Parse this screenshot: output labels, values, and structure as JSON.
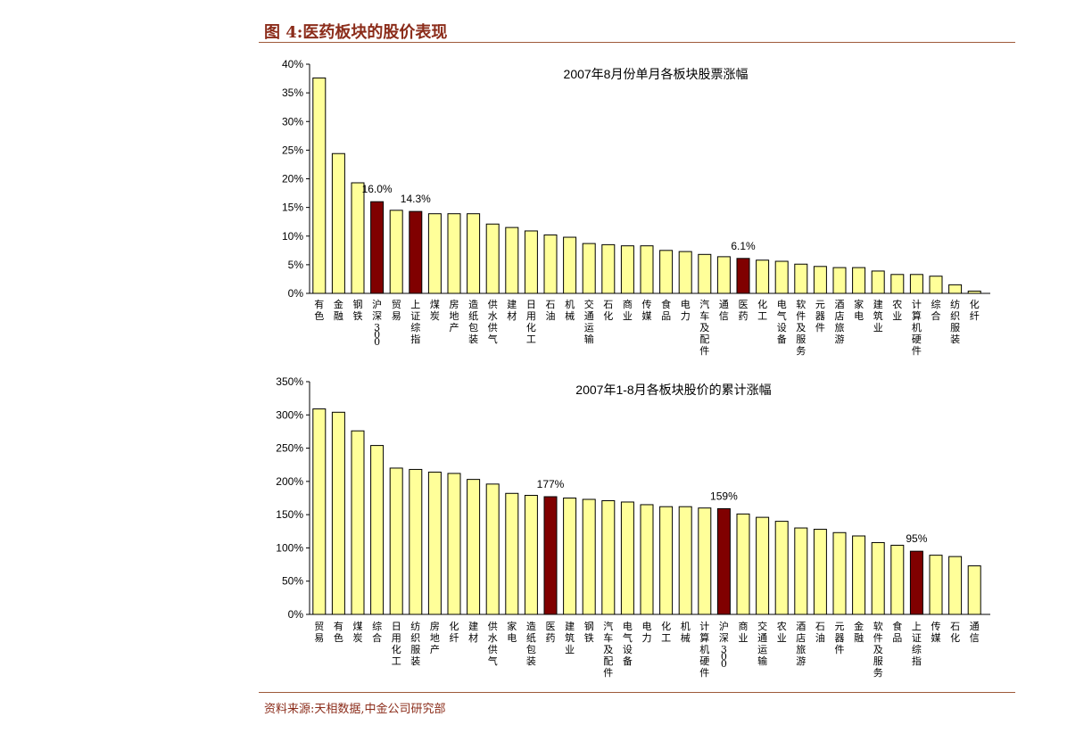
{
  "figure": {
    "title": "图 4:医药板块的股价表现",
    "source": "资料来源:天相数据,中金公司研究部"
  },
  "colors": {
    "normal_bar": "#FFFF99",
    "highlight_bar": "#800000",
    "bar_stroke": "#000000"
  },
  "chart_data": [
    {
      "type": "bar",
      "title": "2007年8月份单月各板块股票涨幅",
      "xlabel": "",
      "ylabel": "",
      "ylim": [
        0,
        40
      ],
      "yticks": [
        0,
        5,
        10,
        15,
        20,
        25,
        30,
        35,
        40
      ],
      "ytick_labels": [
        "0%",
        "5%",
        "10%",
        "15%",
        "20%",
        "25%",
        "30%",
        "35%",
        "40%"
      ],
      "grid": false,
      "legend": "none",
      "categories": [
        "有色",
        "金融",
        "钢铁",
        "沪深300",
        "贸易",
        "上证综指",
        "煤炭",
        "房地产",
        "造纸包装",
        "供水供气",
        "建材",
        "日用化工",
        "石油",
        "机械",
        "交通运输",
        "石化",
        "商业",
        "传媒",
        "食品",
        "电力",
        "汽车及配件",
        "通信",
        "医药",
        "化工",
        "电气设备",
        "软件及服务",
        "元器件",
        "酒店旅游",
        "家电",
        "建筑业",
        "农业",
        "计算机硬件",
        "综合",
        "纺织服装",
        "化纤"
      ],
      "values": [
        37.6,
        24.4,
        19.3,
        16.0,
        14.5,
        14.3,
        13.9,
        13.9,
        13.9,
        12.1,
        11.5,
        10.9,
        10.2,
        9.8,
        8.7,
        8.5,
        8.3,
        8.3,
        7.5,
        7.3,
        6.8,
        6.4,
        6.1,
        5.8,
        5.6,
        5.1,
        4.7,
        4.5,
        4.5,
        3.9,
        3.3,
        3.3,
        3.0,
        1.5,
        0.4
      ],
      "highlight": [
        3,
        5,
        22
      ],
      "data_labels": [
        {
          "index": 3,
          "text": "16.0%"
        },
        {
          "index": 5,
          "text": "14.3%"
        },
        {
          "index": 22,
          "text": "6.1%"
        }
      ]
    },
    {
      "type": "bar",
      "title": "2007年1-8月各板块股价的累计涨幅",
      "xlabel": "",
      "ylabel": "",
      "ylim": [
        0,
        350
      ],
      "yticks": [
        0,
        50,
        100,
        150,
        200,
        250,
        300,
        350
      ],
      "ytick_labels": [
        "0%",
        "50%",
        "100%",
        "150%",
        "200%",
        "250%",
        "300%",
        "350%"
      ],
      "grid": false,
      "legend": "none",
      "categories": [
        "贸易",
        "有色",
        "煤炭",
        "综合",
        "日用化工",
        "纺织服装",
        "房地产",
        "化纤",
        "建材",
        "供水供气",
        "家电",
        "造纸包装",
        "医药",
        "建筑业",
        "钢铁",
        "汽车及配件",
        "电气设备",
        "电力",
        "化工",
        "机械",
        "计算机硬件",
        "沪深300",
        "商业",
        "交通运输",
        "农业",
        "酒店旅游",
        "石油",
        "元器件",
        "金融",
        "软件及服务",
        "食品",
        "上证综指",
        "传媒",
        "石化",
        "通信"
      ],
      "values": [
        309,
        304,
        276,
        254,
        220,
        218,
        214,
        212,
        203,
        196,
        182,
        179,
        177,
        175,
        173,
        171,
        169,
        165,
        162,
        162,
        160,
        159,
        151,
        146,
        140,
        130,
        128,
        123,
        118,
        108,
        104,
        95,
        89,
        87,
        73
      ],
      "highlight": [
        12,
        21,
        31
      ],
      "data_labels": [
        {
          "index": 12,
          "text": "177%"
        },
        {
          "index": 21,
          "text": "159%"
        },
        {
          "index": 31,
          "text": "95%"
        }
      ]
    }
  ]
}
